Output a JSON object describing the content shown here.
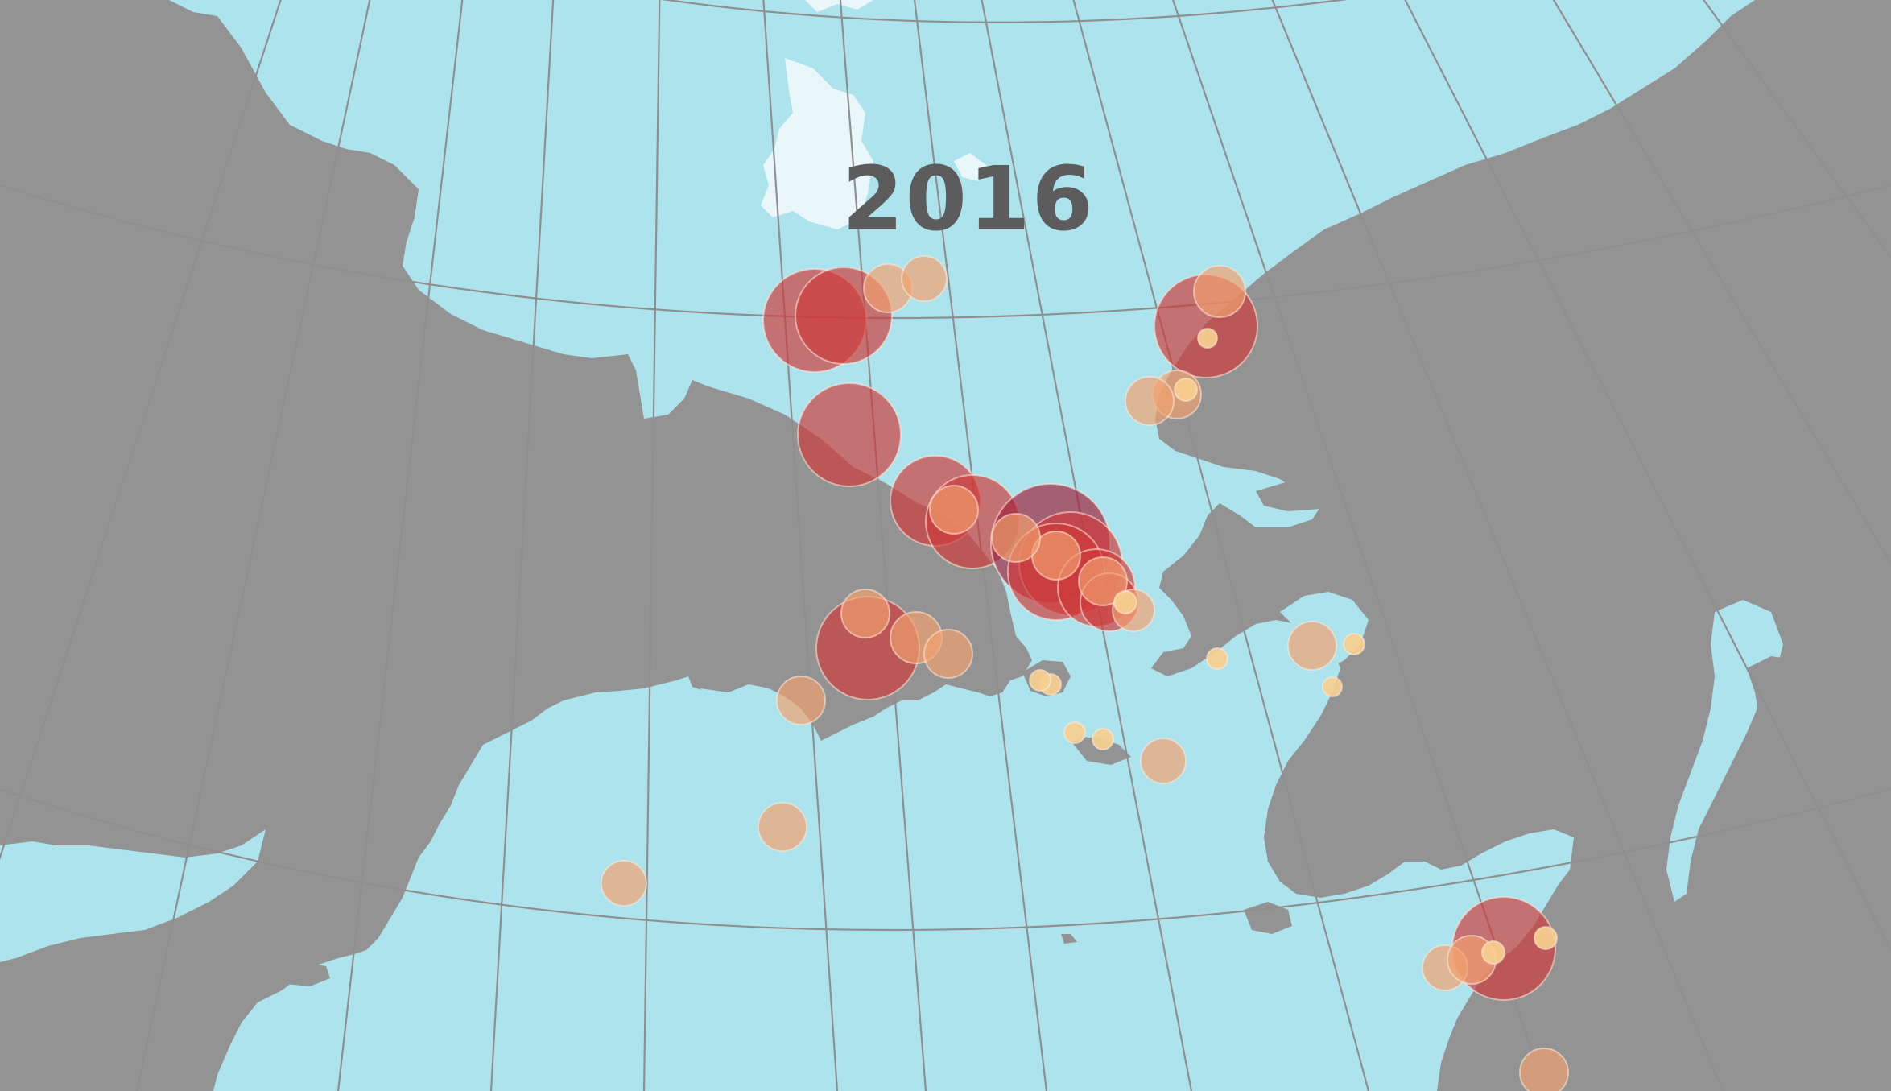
{
  "year_label": "2016",
  "colors": {
    "ocean": "#ade3ec",
    "land": "#939393",
    "sea_ice": "#eaf7fa",
    "graticule": "#8f8f8f",
    "label": "#5c5c5c",
    "bubble_scale": [
      "#f7cf8f",
      "#f1a06e",
      "#e36c4f",
      "#cf3b3b",
      "#a0203a"
    ]
  },
  "legend": null
}
